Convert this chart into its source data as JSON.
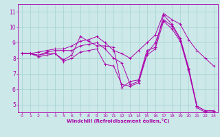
{
  "xlabel": "Windchill (Refroidissement éolien,°C)",
  "background_color": "#cce8e8",
  "line_color": "#aa00aa",
  "xlim": [
    -0.5,
    23.5
  ],
  "ylim": [
    4.5,
    11.5
  ],
  "xticks": [
    0,
    1,
    2,
    3,
    4,
    5,
    6,
    7,
    8,
    9,
    10,
    11,
    12,
    13,
    14,
    15,
    16,
    17,
    18,
    19,
    20,
    21,
    22,
    23
  ],
  "yticks": [
    5,
    6,
    7,
    8,
    9,
    10,
    11
  ],
  "series": [
    {
      "x": [
        0,
        1,
        2,
        3,
        4,
        5,
        6,
        7,
        8,
        9,
        10,
        11,
        12,
        13,
        14,
        15,
        16,
        17,
        18,
        19,
        20,
        21,
        22,
        23
      ],
      "y": [
        8.3,
        8.3,
        8.1,
        8.2,
        8.3,
        7.9,
        8.2,
        9.4,
        9.1,
        8.8,
        8.8,
        8.7,
        6.1,
        6.5,
        6.6,
        8.5,
        8.7,
        10.8,
        10.2,
        9.3,
        7.4,
        4.9,
        4.6,
        4.6
      ]
    },
    {
      "x": [
        0,
        1,
        2,
        3,
        4,
        5,
        6,
        7,
        8,
        9,
        10,
        11,
        12,
        13,
        14,
        15,
        16,
        17,
        18,
        19,
        20,
        21,
        22,
        23
      ],
      "y": [
        8.3,
        8.3,
        8.2,
        8.4,
        8.5,
        8.5,
        8.5,
        8.8,
        8.9,
        9.0,
        8.6,
        8.0,
        7.7,
        6.3,
        6.5,
        8.3,
        9.0,
        10.5,
        10.1,
        9.2,
        7.3,
        4.9,
        4.6,
        4.6
      ]
    },
    {
      "x": [
        0,
        1,
        2,
        3,
        4,
        5,
        6,
        7,
        8,
        9,
        10,
        11,
        12,
        13,
        14,
        15,
        16,
        17,
        18,
        19,
        20,
        21,
        22,
        23
      ],
      "y": [
        8.3,
        8.3,
        8.4,
        8.5,
        8.6,
        8.6,
        8.8,
        9.1,
        9.2,
        9.4,
        9.0,
        8.5,
        8.3,
        8.0,
        8.5,
        9.0,
        9.5,
        10.9,
        10.5,
        10.2,
        9.2,
        8.5,
        8.0,
        7.5
      ]
    },
    {
      "x": [
        0,
        1,
        2,
        3,
        4,
        5,
        6,
        7,
        8,
        9,
        10,
        11,
        12,
        13,
        14,
        15,
        16,
        17,
        18,
        19,
        20,
        21,
        22,
        23
      ],
      "y": [
        8.3,
        8.3,
        8.2,
        8.3,
        8.3,
        7.8,
        8.0,
        8.4,
        8.5,
        8.6,
        7.6,
        7.5,
        6.3,
        6.2,
        6.4,
        8.2,
        8.6,
        10.4,
        9.9,
        9.1,
        7.2,
        4.8,
        4.5,
        4.5
      ]
    }
  ]
}
